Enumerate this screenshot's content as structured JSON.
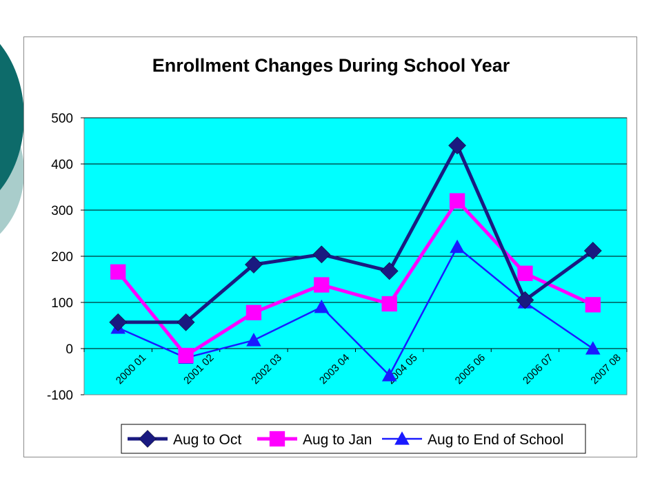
{
  "colors": {
    "deco_dark": "#0d6b6a",
    "deco_light": "#a9cdcb",
    "plot_bg": "#00ffff",
    "gridline": "#000000"
  },
  "chart_data": {
    "type": "line",
    "title": "Enrollment Changes During School Year",
    "xlabel": "",
    "ylabel": "",
    "categories": [
      "2000 01",
      "2001 02",
      "2002 03",
      "2003 04",
      "2004 05",
      "2005 06",
      "2006 07",
      "2007 08"
    ],
    "ylim": [
      -100,
      500
    ],
    "yticks": [
      -100,
      0,
      100,
      200,
      300,
      400,
      500
    ],
    "grid": true,
    "legend_position": "bottom",
    "series": [
      {
        "name": "Aug to Oct",
        "color": "#1a1a80",
        "marker": "diamond",
        "line_width": 5,
        "values": [
          57,
          57,
          182,
          204,
          168,
          440,
          105,
          212
        ]
      },
      {
        "name": "Aug to Jan",
        "color": "#ff00ff",
        "marker": "square",
        "line_width": 5,
        "values": [
          166,
          -15,
          78,
          138,
          97,
          320,
          163,
          95
        ]
      },
      {
        "name": "Aug to End of School",
        "color": "#1a1aff",
        "marker": "triangle",
        "line_width": 2.5,
        "values": [
          45,
          -20,
          18,
          90,
          -58,
          220,
          100,
          0
        ]
      }
    ]
  }
}
